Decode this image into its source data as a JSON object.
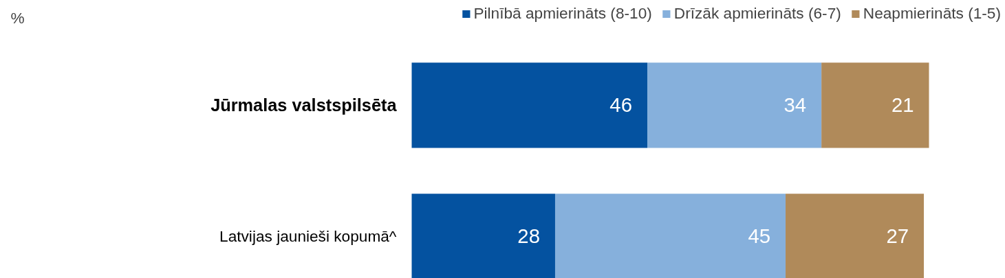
{
  "chart_data": {
    "type": "bar",
    "orientation": "horizontal",
    "stacked": true,
    "categories": [
      "Jūrmalas valstspilsēta",
      "Latvijas jaunieši kopumā^"
    ],
    "series": [
      {
        "name": "Pilnībā apmierināts (8-10)",
        "color": "#0452a0",
        "values": [
          46,
          28
        ]
      },
      {
        "name": "Drīzāk apmierināts (6-7)",
        "color": "#86b0dc",
        "values": [
          34,
          45
        ]
      },
      {
        "name": "Neapmierināts (1-5)",
        "color": "#b08a5a",
        "values": [
          21,
          27
        ]
      }
    ],
    "data_labels": true,
    "legend": "top right",
    "grid": false,
    "annotations": [
      "%"
    ]
  }
}
